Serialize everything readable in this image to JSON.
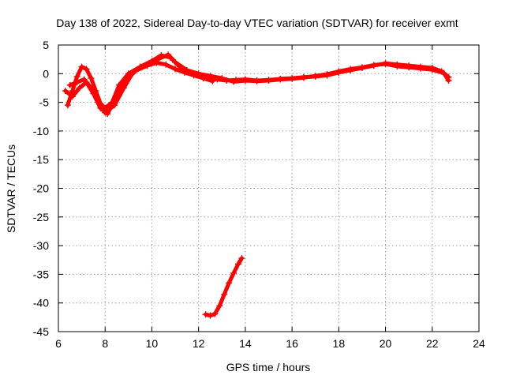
{
  "chart_data": {
    "type": "scatter",
    "title": "Day 138 of 2022, Sidereal Day-to-day VTEC variation (SDTVAR) for receiver exmt",
    "xlabel": "GPS time / hours",
    "ylabel": "SDTVAR / TECUs",
    "xlim": [
      6,
      24
    ],
    "ylim": [
      -45,
      5
    ],
    "xticks": [
      "6",
      "8",
      "10",
      "12",
      "14",
      "16",
      "18",
      "20",
      "22",
      "24"
    ],
    "yticks": [
      "5",
      "0",
      "-5",
      "-10",
      "-15",
      "-20",
      "-25",
      "-30",
      "-35",
      "-40",
      "-45"
    ],
    "grid": true,
    "legend": "none",
    "color": "#ff0000",
    "marker": "plus",
    "series": [
      {
        "name": "main-a",
        "x": [
          6.4,
          6.6,
          6.8,
          7.0,
          7.2,
          7.4,
          7.6,
          7.8,
          8.0,
          8.3,
          8.6,
          9.0,
          9.5,
          10.0,
          10.4,
          10.8,
          11.2,
          11.6,
          12.0,
          12.4,
          12.8,
          13.2,
          13.6,
          14.0,
          14.5,
          15.0,
          15.5,
          16.0,
          16.5,
          17.0,
          17.5,
          18.0,
          18.5,
          19.0,
          19.5,
          20.0,
          20.5,
          21.0,
          21.5,
          22.0,
          22.4,
          22.7
        ],
        "values": [
          -5.5,
          -3,
          -0.5,
          1.2,
          0.8,
          -0.8,
          -3,
          -5.2,
          -6,
          -5,
          -2,
          0,
          1.2,
          2.2,
          3.2,
          2.8,
          1.2,
          0.2,
          -0.2,
          -0.6,
          -1,
          -1.2,
          -1.1,
          -1,
          -1.2,
          -1.1,
          -0.9,
          -0.8,
          -0.6,
          -0.5,
          -0.3,
          0.2,
          0.6,
          1.0,
          1.4,
          1.8,
          1.6,
          1.4,
          1.2,
          1.0,
          0.4,
          -0.6
        ]
      },
      {
        "name": "main-b",
        "x": [
          6.5,
          6.8,
          7.1,
          7.4,
          7.7,
          8.0,
          8.4,
          8.8,
          9.2,
          9.8,
          10.3,
          10.7,
          11.0,
          11.5,
          12.0,
          12.5,
          13.0,
          13.5,
          14.0,
          14.5,
          15.0,
          15.5,
          16.0,
          16.5,
          17.0,
          17.5,
          18.0,
          18.5,
          19.0,
          19.5,
          20.0,
          20.5,
          21.0,
          21.5,
          22.0,
          22.5,
          22.7
        ],
        "values": [
          -2,
          -1.5,
          -1,
          -2.5,
          -5,
          -6.8,
          -5.5,
          -2.5,
          0.3,
          1.5,
          2.6,
          3.3,
          2.0,
          0.6,
          0,
          -0.4,
          -0.8,
          -1.4,
          -1.2,
          -1.3,
          -1.2,
          -1.0,
          -0.9,
          -0.7,
          -0.4,
          -0.1,
          0.4,
          0.8,
          1.1,
          1.5,
          1.7,
          1.3,
          1.1,
          0.9,
          0.7,
          0.1,
          -1.2
        ]
      },
      {
        "name": "main-c",
        "x": [
          6.3,
          6.6,
          6.9,
          7.2,
          7.5,
          7.8,
          8.1,
          8.5,
          8.9,
          9.3,
          9.8,
          10.2,
          10.6,
          11.0,
          11.4,
          11.8,
          12.2,
          12.6
        ],
        "values": [
          -3,
          -4,
          -2.5,
          -1.5,
          -3.5,
          -6,
          -7,
          -4,
          -1.2,
          0.5,
          1.4,
          1.9,
          1.6,
          0.8,
          0.2,
          -0.3,
          -0.8,
          -1.3
        ]
      },
      {
        "name": "isolated-arc",
        "x": [
          12.3,
          12.5,
          12.7,
          12.9,
          13.1,
          13.3,
          13.5,
          13.7,
          13.85
        ],
        "values": [
          -42,
          -42.2,
          -41.9,
          -40.5,
          -38.5,
          -36.5,
          -34.8,
          -33.2,
          -32.2
        ]
      }
    ]
  }
}
